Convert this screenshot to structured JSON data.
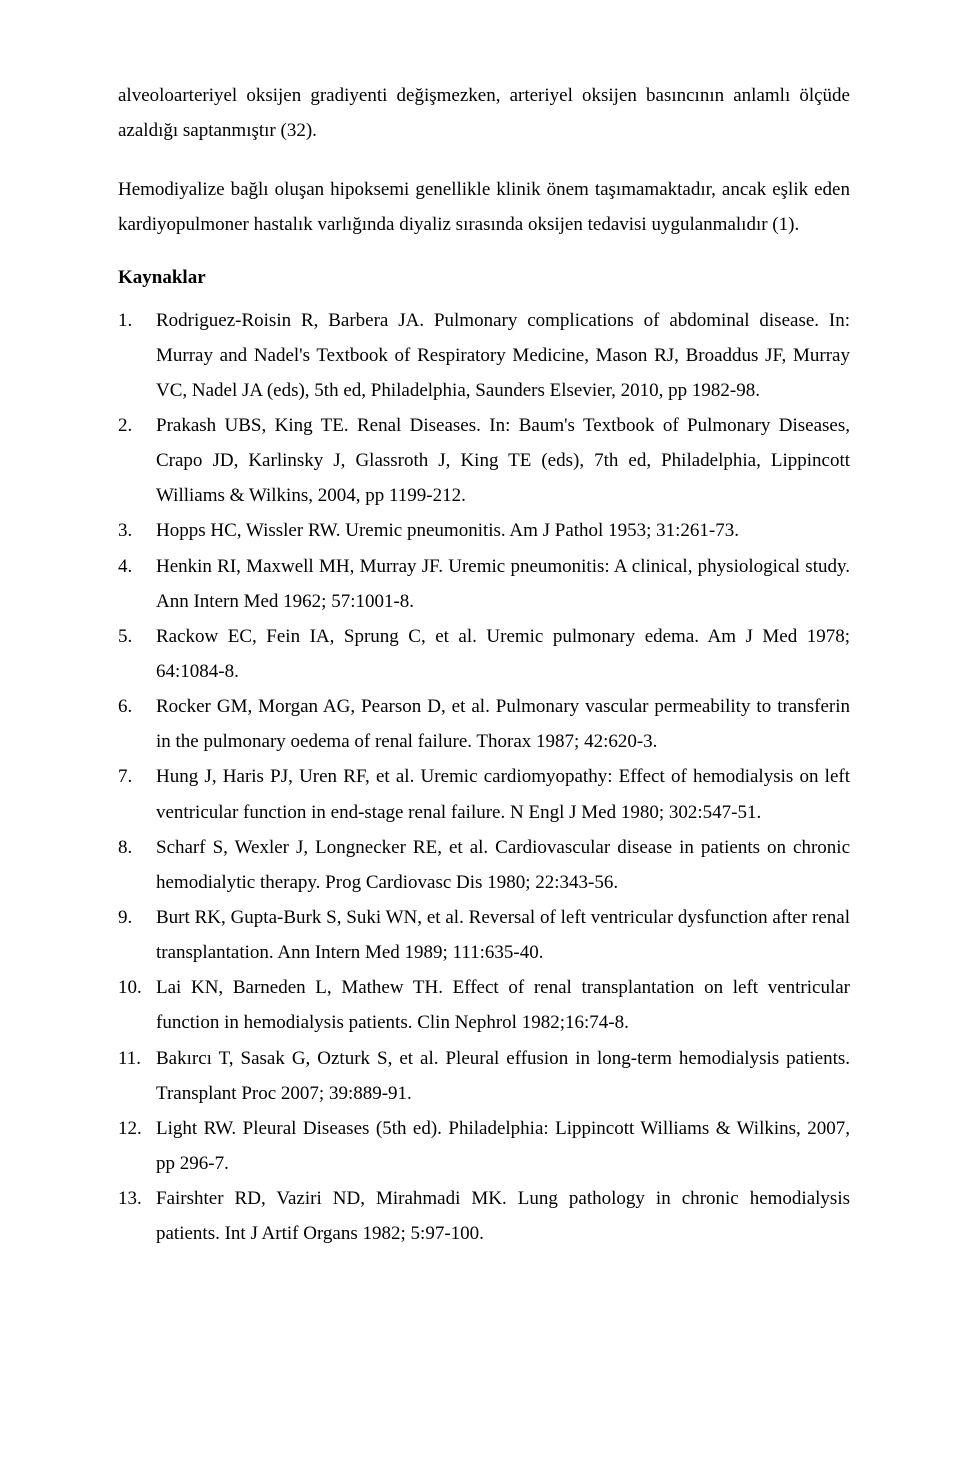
{
  "intro": {
    "p1": "alveoloarteriyel oksijen gradiyenti değişmezken, arteriyel oksijen basıncının anlamlı ölçüde azaldığı saptanmıştır (32).",
    "p2": "Hemodiyalize bağlı oluşan hipoksemi genellikle klinik önem taşımamaktadır, ancak eşlik eden kardiyopulmoner hastalık varlığında diyaliz sırasında oksijen tedavisi uygulanmalıdır (1)."
  },
  "refs_heading": "Kaynaklar",
  "references": [
    "Rodriguez-Roisin R, Barbera JA. Pulmonary complications of abdominal disease. In: Murray and Nadel's Textbook of Respiratory Medicine, Mason RJ, Broaddus JF, Murray VC, Nadel JA (eds), 5th ed, Philadelphia, Saunders Elsevier, 2010, pp 1982-98.",
    "Prakash UBS, King TE. Renal Diseases. In: Baum's Textbook of Pulmonary Diseases, Crapo JD, Karlinsky J, Glassroth J, King TE (eds), 7th ed, Philadelphia, Lippincott Williams & Wilkins, 2004, pp 1199-212.",
    "Hopps HC, Wissler RW. Uremic pneumonitis. Am J Pathol 1953; 31:261-73.",
    "Henkin RI, Maxwell MH, Murray JF. Uremic pneumonitis: A clinical, physiological study. Ann Intern Med 1962; 57:1001-8.",
    "Rackow EC, Fein IA, Sprung C, et al. Uremic pulmonary edema. Am J Med 1978; 64:1084-8.",
    "Rocker GM, Morgan AG, Pearson D, et al. Pulmonary vascular permeability to transferin in the pulmonary oedema of renal failure. Thorax 1987; 42:620-3.",
    "Hung J, Haris PJ, Uren RF, et al. Uremic cardiomyopathy: Effect of hemodialysis on left ventricular function in end-stage renal failure. N Engl J Med 1980; 302:547-51.",
    "Scharf S, Wexler J, Longnecker RE, et al. Cardiovascular disease in patients on chronic hemodialytic therapy. Prog Cardiovasc Dis 1980; 22:343-56.",
    "Burt RK, Gupta-Burk S, Suki WN, et al. Reversal of left ventricular dysfunction after renal transplantation. Ann Intern Med 1989; 111:635-40.",
    "Lai KN, Barneden L, Mathew TH. Effect of renal transplantation on left ventricular function in hemodialysis patients. Clin Nephrol 1982;16:74-8.",
    "Bakırcı T, Sasak G, Ozturk S, et al. Pleural effusion in long-term hemodialysis patients. Transplant Proc 2007; 39:889-91.",
    "Light RW. Pleural Diseases (5th ed). Philadelphia: Lippincott Williams & Wilkins, 2007, pp 296-7.",
    "Fairshter RD, Vaziri ND, Mirahmadi MK. Lung pathology in chronic hemodialysis patients. Int J Artif Organs 1982; 5:97-100."
  ]
}
